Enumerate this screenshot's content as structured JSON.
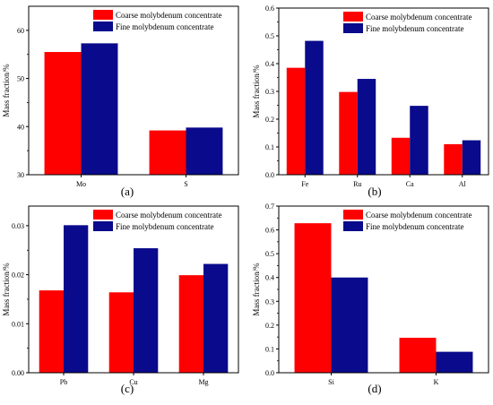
{
  "colors": {
    "coarse": "#ff0000",
    "fine": "#0a0a8c",
    "axis": "#000000",
    "background": "#ffffff"
  },
  "chart_data": [
    {
      "type": "bar",
      "panel_label": "(a)",
      "ylabel": "Mass fraction/%",
      "categories": [
        "Mo",
        "S"
      ],
      "ylim": [
        30,
        65
      ],
      "yticks": [
        30,
        40,
        50,
        60
      ],
      "ytick_labels": [
        "30",
        "40",
        "50",
        "60"
      ],
      "legend_position": "top-right",
      "series": [
        {
          "name": "Coarse molybdenum concentrate",
          "values": [
            55.5,
            39.2
          ]
        },
        {
          "name": "Fine molybdenum concentrate",
          "values": [
            57.3,
            39.8
          ]
        }
      ]
    },
    {
      "type": "bar",
      "panel_label": "(b)",
      "ylabel": "Mass fraction/%",
      "categories": [
        "Fe",
        "Ru",
        "Ca",
        "Al"
      ],
      "ylim": [
        0,
        0.6
      ],
      "yticks": [
        0,
        0.1,
        0.2,
        0.3,
        0.4,
        0.5,
        0.6
      ],
      "ytick_labels": [
        "0.0",
        "0.1",
        "0.2",
        "0.3",
        "0.4",
        "0.5",
        "0.6"
      ],
      "legend_position": "top-right",
      "series": [
        {
          "name": "Coarse molybdenum concentrate",
          "values": [
            0.385,
            0.298,
            0.133,
            0.11
          ]
        },
        {
          "name": "Fine molybdenum concentrate",
          "values": [
            0.482,
            0.345,
            0.248,
            0.124
          ]
        }
      ]
    },
    {
      "type": "bar",
      "panel_label": "(c)",
      "ylabel": "Mass fraction/%",
      "categories": [
        "Pb",
        "Cu",
        "Mg"
      ],
      "ylim": [
        0,
        0.034
      ],
      "yticks": [
        0,
        0.01,
        0.02,
        0.03
      ],
      "ytick_labels": [
        "0.00",
        "0.01",
        "0.02",
        "0.03"
      ],
      "legend_position": "top-right",
      "series": [
        {
          "name": "Coarse molybdenum concentrate",
          "values": [
            0.0168,
            0.0164,
            0.0199
          ]
        },
        {
          "name": "Fine molybdenum concentrate",
          "values": [
            0.0301,
            0.0254,
            0.0222
          ]
        }
      ]
    },
    {
      "type": "bar",
      "panel_label": "(d)",
      "ylabel": "Mass fraction/%",
      "categories": [
        "Si",
        "K"
      ],
      "ylim": [
        0,
        0.7
      ],
      "yticks": [
        0,
        0.1,
        0.2,
        0.3,
        0.4,
        0.5,
        0.6,
        0.7
      ],
      "ytick_labels": [
        "0.0",
        "0.1",
        "0.2",
        "0.3",
        "0.4",
        "0.5",
        "0.6",
        "0.7"
      ],
      "legend_position": "top-right",
      "series": [
        {
          "name": "Coarse molybdenum concentrate",
          "values": [
            0.628,
            0.147
          ]
        },
        {
          "name": "Fine molybdenum concentrate",
          "values": [
            0.4,
            0.088
          ]
        }
      ]
    }
  ]
}
